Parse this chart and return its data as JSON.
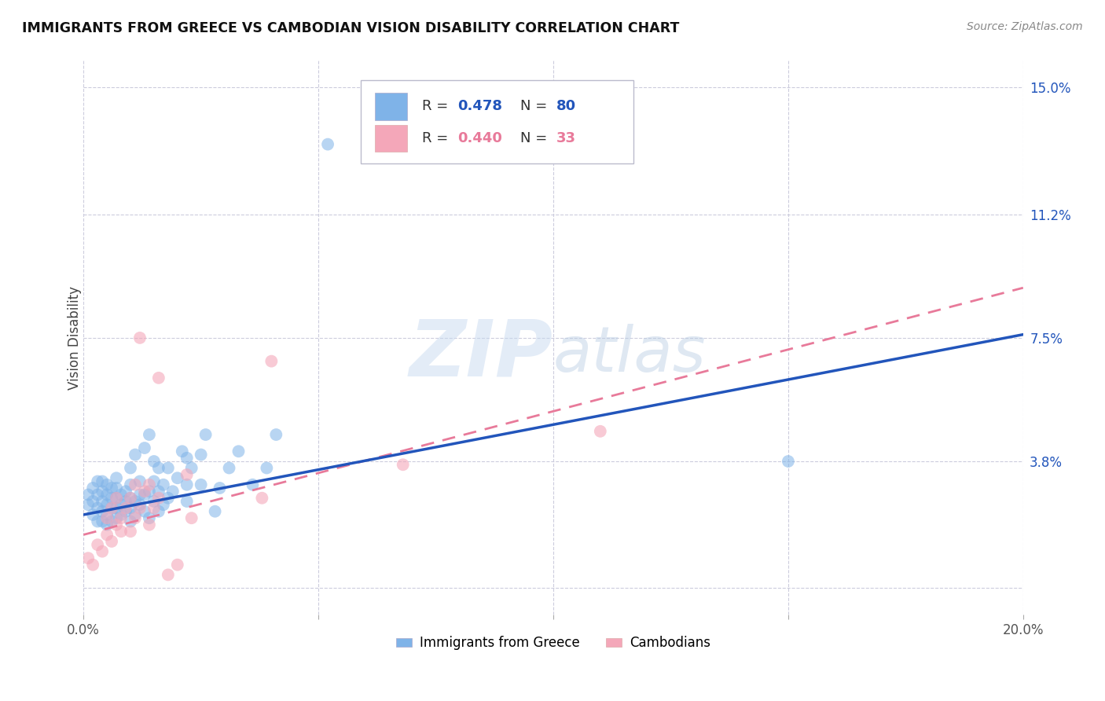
{
  "title": "IMMIGRANTS FROM GREECE VS CAMBODIAN VISION DISABILITY CORRELATION CHART",
  "source": "Source: ZipAtlas.com",
  "ylabel": "Vision Disability",
  "xlim": [
    0.0,
    0.2
  ],
  "ylim": [
    -0.008,
    0.158
  ],
  "xticks": [
    0.0,
    0.05,
    0.1,
    0.15,
    0.2
  ],
  "xticklabels": [
    "0.0%",
    "",
    "",
    "",
    "20.0%"
  ],
  "ytick_positions": [
    0.0,
    0.038,
    0.075,
    0.112,
    0.15
  ],
  "ytick_labels": [
    "",
    "3.8%",
    "7.5%",
    "11.2%",
    "15.0%"
  ],
  "grid_color": "#ccccdd",
  "background_color": "#ffffff",
  "watermark_zip": "ZIP",
  "watermark_atlas": "atlas",
  "blue_color": "#7fb3e8",
  "pink_color": "#f4a7b9",
  "blue_line_color": "#2255bb",
  "pink_line_color": "#e87a9a",
  "blue_scatter": [
    [
      0.001,
      0.025
    ],
    [
      0.001,
      0.028
    ],
    [
      0.002,
      0.022
    ],
    [
      0.002,
      0.026
    ],
    [
      0.002,
      0.03
    ],
    [
      0.003,
      0.02
    ],
    [
      0.003,
      0.024
    ],
    [
      0.003,
      0.028
    ],
    [
      0.003,
      0.032
    ],
    [
      0.004,
      0.02
    ],
    [
      0.004,
      0.023
    ],
    [
      0.004,
      0.026
    ],
    [
      0.004,
      0.029
    ],
    [
      0.004,
      0.032
    ],
    [
      0.005,
      0.019
    ],
    [
      0.005,
      0.022
    ],
    [
      0.005,
      0.025
    ],
    [
      0.005,
      0.028
    ],
    [
      0.005,
      0.031
    ],
    [
      0.006,
      0.02
    ],
    [
      0.006,
      0.024
    ],
    [
      0.006,
      0.027
    ],
    [
      0.006,
      0.03
    ],
    [
      0.007,
      0.021
    ],
    [
      0.007,
      0.024
    ],
    [
      0.007,
      0.027
    ],
    [
      0.007,
      0.03
    ],
    [
      0.007,
      0.033
    ],
    [
      0.008,
      0.022
    ],
    [
      0.008,
      0.025
    ],
    [
      0.008,
      0.028
    ],
    [
      0.009,
      0.023
    ],
    [
      0.009,
      0.026
    ],
    [
      0.009,
      0.029
    ],
    [
      0.01,
      0.02
    ],
    [
      0.01,
      0.024
    ],
    [
      0.01,
      0.027
    ],
    [
      0.01,
      0.031
    ],
    [
      0.01,
      0.036
    ],
    [
      0.011,
      0.022
    ],
    [
      0.011,
      0.026
    ],
    [
      0.011,
      0.04
    ],
    [
      0.012,
      0.025
    ],
    [
      0.012,
      0.028
    ],
    [
      0.012,
      0.032
    ],
    [
      0.013,
      0.023
    ],
    [
      0.013,
      0.028
    ],
    [
      0.013,
      0.042
    ],
    [
      0.014,
      0.021
    ],
    [
      0.014,
      0.029
    ],
    [
      0.014,
      0.046
    ],
    [
      0.015,
      0.026
    ],
    [
      0.015,
      0.032
    ],
    [
      0.015,
      0.038
    ],
    [
      0.016,
      0.023
    ],
    [
      0.016,
      0.029
    ],
    [
      0.016,
      0.036
    ],
    [
      0.017,
      0.025
    ],
    [
      0.017,
      0.031
    ],
    [
      0.018,
      0.027
    ],
    [
      0.018,
      0.036
    ],
    [
      0.019,
      0.029
    ],
    [
      0.02,
      0.033
    ],
    [
      0.021,
      0.041
    ],
    [
      0.022,
      0.026
    ],
    [
      0.022,
      0.031
    ],
    [
      0.022,
      0.039
    ],
    [
      0.023,
      0.036
    ],
    [
      0.025,
      0.031
    ],
    [
      0.025,
      0.04
    ],
    [
      0.026,
      0.046
    ],
    [
      0.028,
      0.023
    ],
    [
      0.029,
      0.03
    ],
    [
      0.031,
      0.036
    ],
    [
      0.033,
      0.041
    ],
    [
      0.036,
      0.031
    ],
    [
      0.039,
      0.036
    ],
    [
      0.041,
      0.046
    ],
    [
      0.15,
      0.038
    ],
    [
      0.052,
      0.133
    ]
  ],
  "pink_scatter": [
    [
      0.001,
      0.009
    ],
    [
      0.002,
      0.007
    ],
    [
      0.003,
      0.013
    ],
    [
      0.004,
      0.011
    ],
    [
      0.005,
      0.016
    ],
    [
      0.005,
      0.021
    ],
    [
      0.006,
      0.014
    ],
    [
      0.006,
      0.024
    ],
    [
      0.007,
      0.019
    ],
    [
      0.007,
      0.027
    ],
    [
      0.008,
      0.017
    ],
    [
      0.008,
      0.021
    ],
    [
      0.009,
      0.024
    ],
    [
      0.01,
      0.017
    ],
    [
      0.01,
      0.027
    ],
    [
      0.011,
      0.021
    ],
    [
      0.011,
      0.031
    ],
    [
      0.012,
      0.024
    ],
    [
      0.012,
      0.075
    ],
    [
      0.013,
      0.029
    ],
    [
      0.014,
      0.019
    ],
    [
      0.014,
      0.031
    ],
    [
      0.015,
      0.024
    ],
    [
      0.016,
      0.027
    ],
    [
      0.016,
      0.063
    ],
    [
      0.018,
      0.004
    ],
    [
      0.02,
      0.007
    ],
    [
      0.022,
      0.034
    ],
    [
      0.023,
      0.021
    ],
    [
      0.038,
      0.027
    ],
    [
      0.04,
      0.068
    ],
    [
      0.068,
      0.037
    ],
    [
      0.11,
      0.047
    ]
  ],
  "blue_line": {
    "x0": 0.0,
    "y0": 0.022,
    "x1": 0.2,
    "y1": 0.076
  },
  "pink_line": {
    "x0": 0.0,
    "y0": 0.016,
    "x1": 0.2,
    "y1": 0.09
  }
}
